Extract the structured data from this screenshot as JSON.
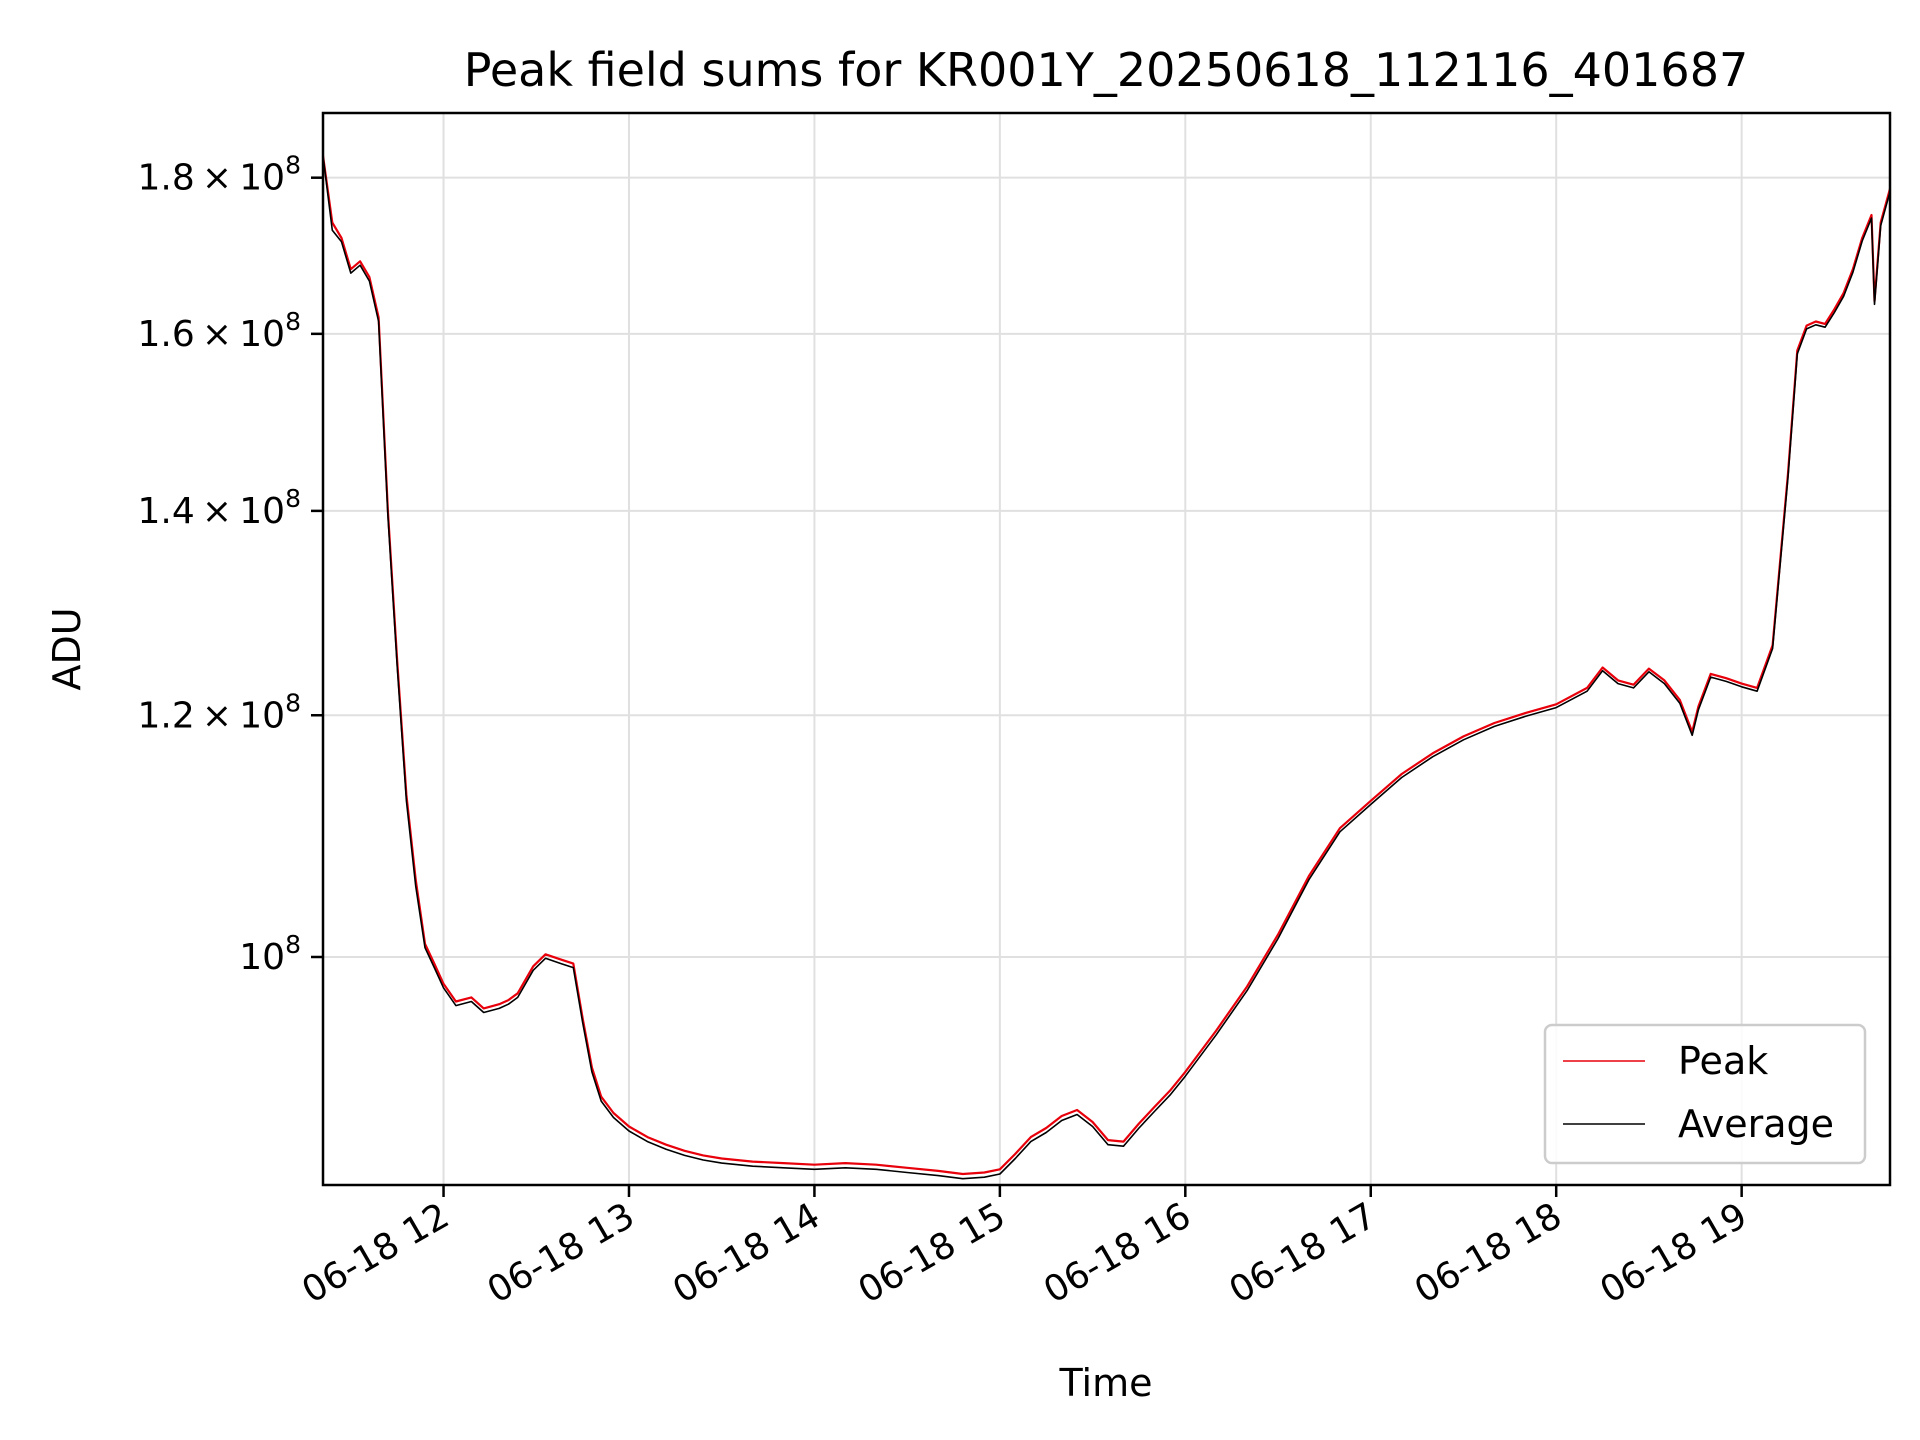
{
  "chart_data": {
    "type": "line",
    "title": "Peak field sums for KR001Y_20250618_112116_401687",
    "xlabel": "Time",
    "ylabel": "ADU",
    "x_ticks": [
      "06-18 12",
      "06-18 13",
      "06-18 14",
      "06-18 15",
      "06-18 16",
      "06-18 17",
      "06-18 18",
      "06-18 19"
    ],
    "y_ticks": [
      {
        "value": 100000000,
        "base": "",
        "exp": "8",
        "prefix": "10"
      },
      {
        "value": 120000000,
        "base": "1.2",
        "exp": "8",
        "prefix": "10"
      },
      {
        "value": 140000000,
        "base": "1.4",
        "exp": "8",
        "prefix": "10"
      },
      {
        "value": 160000000,
        "base": "1.6",
        "exp": "8",
        "prefix": "10"
      },
      {
        "value": 180000000,
        "base": "1.8",
        "exp": "8",
        "prefix": "10"
      }
    ],
    "y_scale": "log",
    "xlim": [
      "2025-06-18 11:21",
      "2025-06-18 19:48"
    ],
    "ylim": [
      84200000,
      189000000
    ],
    "grid": true,
    "legend_position": "lower right",
    "x": [
      "11:21",
      "11:24",
      "11:27",
      "11:30",
      "11:33",
      "11:36",
      "11:39",
      "11:42",
      "11:45",
      "11:48",
      "11:51",
      "11:54",
      "11:57",
      "12:00",
      "12:04",
      "12:09",
      "12:13",
      "12:18",
      "12:21",
      "12:24",
      "12:29",
      "12:33",
      "12:38",
      "12:42",
      "12:45",
      "12:48",
      "12:51",
      "12:55",
      "13:00",
      "13:06",
      "13:12",
      "13:18",
      "13:24",
      "13:30",
      "13:40",
      "13:50",
      "14:00",
      "14:10",
      "14:20",
      "14:30",
      "14:40",
      "14:48",
      "14:55",
      "15:00",
      "15:05",
      "15:10",
      "15:15",
      "15:20",
      "15:25",
      "15:30",
      "15:35",
      "15:40",
      "15:45",
      "15:50",
      "15:55",
      "16:00",
      "16:10",
      "16:20",
      "16:30",
      "16:40",
      "16:50",
      "17:00",
      "17:10",
      "17:20",
      "17:30",
      "17:40",
      "17:50",
      "18:00",
      "18:10",
      "18:15",
      "18:20",
      "18:25",
      "18:30",
      "18:35",
      "18:40",
      "18:44",
      "18:46",
      "18:50",
      "18:55",
      "19:00",
      "19:05",
      "19:10",
      "19:15",
      "19:18",
      "19:21",
      "19:24",
      "19:27",
      "19:30",
      "19:33",
      "19:36",
      "19:39",
      "19:42",
      "19:43",
      "19:45",
      "19:48"
    ],
    "series": [
      {
        "name": "Peak",
        "color": "#e8000b",
        "values": [
          183000000,
          174000000,
          172000000,
          168000000,
          169000000,
          167000000,
          162000000,
          140000000,
          125000000,
          113000000,
          106000000,
          101000000,
          99500000,
          98000000,
          96700000,
          97000000,
          96200000,
          96500000,
          96800000,
          97300000,
          99300000,
          100200000,
          99800000,
          99500000,
          95500000,
          92000000,
          90000000,
          88900000,
          88000000,
          87300000,
          86800000,
          86400000,
          86100000,
          85900000,
          85700000,
          85600000,
          85500000,
          85600000,
          85500000,
          85300000,
          85100000,
          84900000,
          85000000,
          85200000,
          86200000,
          87300000,
          87900000,
          88700000,
          89100000,
          88300000,
          87100000,
          87000000,
          88200000,
          89300000,
          90400000,
          91700000,
          94600000,
          97800000,
          101700000,
          106300000,
          110200000,
          112500000,
          114800000,
          116600000,
          118100000,
          119300000,
          120200000,
          121000000,
          122500000,
          124400000,
          123200000,
          122800000,
          124300000,
          123200000,
          121400000,
          118500000,
          120800000,
          123800000,
          123400000,
          122900000,
          122500000,
          126500000,
          144000000,
          158000000,
          161000000,
          161500000,
          161200000,
          163000000,
          165000000,
          168000000,
          172000000,
          175000000,
          164000000,
          174000000,
          178500000
        ]
      },
      {
        "name": "Average",
        "color": "#000000",
        "values": [
          183000000,
          173000000,
          171500000,
          167500000,
          168500000,
          166500000,
          161500000,
          139500000,
          124500000,
          112500000,
          105500000,
          100700000,
          99200000,
          97700000,
          96400000,
          96700000,
          95900000,
          96200000,
          96500000,
          97000000,
          99000000,
          99900000,
          99500000,
          99200000,
          95200000,
          91700000,
          89700000,
          88600000,
          87700000,
          87000000,
          86500000,
          86100000,
          85800000,
          85600000,
          85400000,
          85300000,
          85200000,
          85300000,
          85200000,
          85000000,
          84800000,
          84600000,
          84700000,
          84900000,
          85900000,
          87000000,
          87600000,
          88400000,
          88800000,
          88000000,
          86800000,
          86700000,
          87900000,
          89000000,
          90100000,
          91400000,
          94300000,
          97500000,
          101400000,
          106000000,
          109900000,
          112200000,
          114500000,
          116300000,
          117800000,
          119000000,
          119900000,
          120700000,
          122200000,
          124100000,
          122900000,
          122500000,
          124000000,
          122900000,
          121100000,
          118200000,
          120500000,
          123500000,
          123100000,
          122600000,
          122200000,
          126200000,
          143600000,
          157600000,
          160600000,
          161100000,
          160800000,
          162600000,
          164600000,
          167600000,
          171600000,
          174600000,
          163600000,
          173600000,
          178100000
        ]
      }
    ]
  }
}
